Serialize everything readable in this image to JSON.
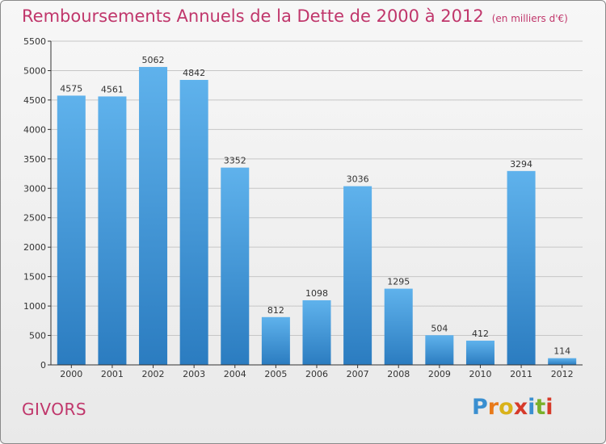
{
  "header": {
    "title": "Remboursements Annuels de la Dette de 2000 à 2012",
    "subtitle": "(en milliers d'€)"
  },
  "footer": {
    "place": "GIVORS",
    "brand_letters": [
      "P",
      "r",
      "o",
      "x",
      "i",
      "t",
      "i"
    ],
    "brand_colors": [
      "#3a8fd0",
      "#e87a1a",
      "#d9b21a",
      "#d63a2a",
      "#3a8fd0",
      "#7ab02a",
      "#d63a2a"
    ]
  },
  "colors": {
    "bar_top": "#5fb2ec",
    "bar_bottom": "#2b7cc0",
    "title": "#c0366b"
  },
  "chart_data": {
    "type": "bar",
    "title": "Remboursements Annuels de la Dette de 2000 à 2012",
    "subtitle": "(en milliers d'€)",
    "categories": [
      "2000",
      "2001",
      "2002",
      "2003",
      "2004",
      "2005",
      "2006",
      "2007",
      "2008",
      "2009",
      "2010",
      "2011",
      "2012"
    ],
    "values": [
      4575,
      4561,
      5062,
      4842,
      3352,
      812,
      1098,
      3036,
      1295,
      504,
      412,
      3294,
      114
    ],
    "ylim": [
      0,
      5500
    ],
    "yticks": [
      0,
      500,
      1000,
      1500,
      2000,
      2500,
      3000,
      3500,
      4000,
      4500,
      5000,
      5500
    ],
    "grid": true,
    "xlabel": "",
    "ylabel": ""
  }
}
